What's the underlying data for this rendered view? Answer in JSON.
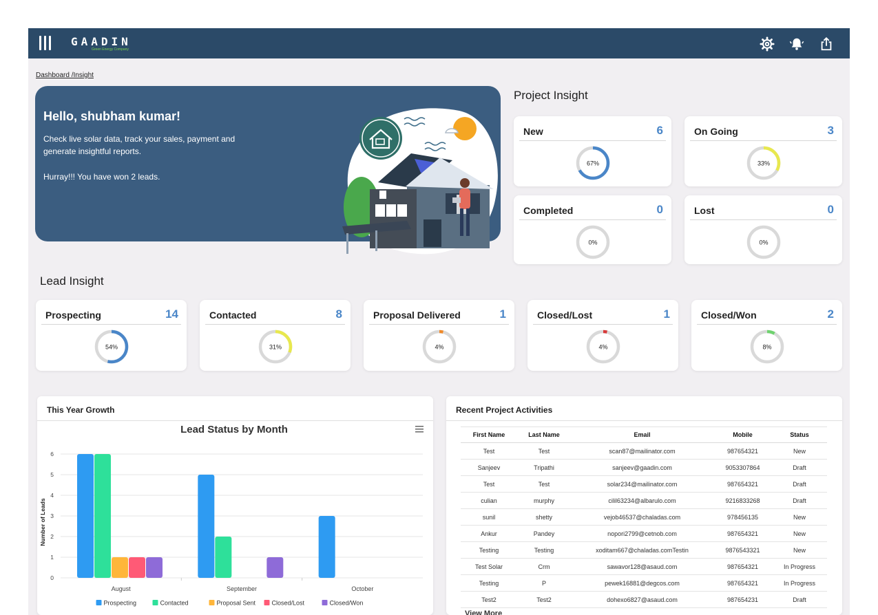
{
  "header": {
    "brand": "GAADIN",
    "tagline": "Green Energy Company",
    "icons": [
      "menu-icon",
      "gear-icon",
      "bell-icon",
      "share-icon"
    ]
  },
  "breadcrumb": {
    "root": "Dashboard /",
    "current": "Insight"
  },
  "hero": {
    "greeting": "Hello, shubham kumar!",
    "message": "Check live solar data, track your sales, payment and generate insightful reports.",
    "won": "Hurray!!! You have won 2 leads."
  },
  "project_insight": {
    "title": "Project Insight",
    "cards": [
      {
        "label": "New",
        "count": "6",
        "percent_label": "67%",
        "fraction": 0.67,
        "color": "#4a86c8"
      },
      {
        "label": "On Going",
        "count": "3",
        "percent_label": "33%",
        "fraction": 0.33,
        "color": "#e8e84e"
      },
      {
        "label": "Completed",
        "count": "0",
        "percent_label": "0%",
        "fraction": 0,
        "color": "#4a86c8"
      },
      {
        "label": "Lost",
        "count": "0",
        "percent_label": "0%",
        "fraction": 0,
        "color": "#4a86c8"
      }
    ]
  },
  "lead_insight": {
    "title": "Lead Insight",
    "cards": [
      {
        "label": "Prospecting",
        "count": "14",
        "percent_label": "54%",
        "fraction": 0.54,
        "color": "#4a86c8"
      },
      {
        "label": "Contacted",
        "count": "8",
        "percent_label": "31%",
        "fraction": 0.31,
        "color": "#e8e84e"
      },
      {
        "label": "Proposal Delivered",
        "count": "1",
        "percent_label": "4%",
        "fraction": 0.04,
        "color": "#ef8a2a"
      },
      {
        "label": "Closed/Lost",
        "count": "1",
        "percent_label": "4%",
        "fraction": 0.04,
        "color": "#d73a3a"
      },
      {
        "label": "Closed/Won",
        "count": "2",
        "percent_label": "8%",
        "fraction": 0.08,
        "color": "#6fd26f"
      }
    ]
  },
  "growth": {
    "panel_title": "This Year Growth",
    "chart_menu_icon": "hamburger-icon"
  },
  "chart_data": {
    "type": "bar",
    "title": "Lead Status by Month",
    "xlabel": "",
    "ylabel": "Number of Leads",
    "categories": [
      "August",
      "September",
      "October"
    ],
    "ylim": [
      0,
      6
    ],
    "yticks": [
      "0",
      "1",
      "2",
      "3",
      "4",
      "5",
      "6"
    ],
    "grid": true,
    "legend_position": "bottom",
    "series": [
      {
        "name": "Prospecting",
        "color": "#2e9bf2",
        "values": [
          6,
          5,
          3
        ]
      },
      {
        "name": "Contacted",
        "color": "#2ee09a",
        "values": [
          6,
          2,
          0
        ]
      },
      {
        "name": "Proposal Sent",
        "color": "#ffb63a",
        "values": [
          1,
          0,
          0
        ]
      },
      {
        "name": "Closed/Lost",
        "color": "#ff5a76",
        "values": [
          1,
          0,
          0
        ]
      },
      {
        "name": "Closed/Won",
        "color": "#8e6bd8",
        "values": [
          1,
          1,
          0
        ]
      }
    ]
  },
  "activities": {
    "panel_title": "Recent Project Activities",
    "columns": [
      "First Name",
      "Last Name",
      "Email",
      "Mobile",
      "Status"
    ],
    "rows": [
      [
        "Test",
        "Test",
        "scan87@mailinator.com",
        "987654321",
        "New"
      ],
      [
        "Sanjeev",
        "Tripathi",
        "sanjeev@gaadin.com",
        "9053307864",
        "Draft"
      ],
      [
        "Test",
        "Test",
        "solar234@mailinator.com",
        "987654321",
        "Draft"
      ],
      [
        "culian",
        "murphy",
        "cilil63234@albarulo.com",
        "9216833268",
        "Draft"
      ],
      [
        "sunil",
        "shetty",
        "vejob46537@chaladas.com",
        "978456135",
        "New"
      ],
      [
        "Ankur",
        "Pandey",
        "nopori2799@cetnob.com",
        "987654321",
        "New"
      ],
      [
        "Testing",
        "Testing",
        "xoditam667@chaladas.comTestin",
        "9876543321",
        "New"
      ],
      [
        "Test Solar",
        "Crm",
        "sawavor128@asaud.com",
        "987654321",
        "In Progress"
      ],
      [
        "Testing",
        "P",
        "pewek16881@degcos.com",
        "987654321",
        "In Progress"
      ],
      [
        "Test2",
        "Test2",
        "dohexo6827@asaud.com",
        "987654231",
        "Draft"
      ]
    ],
    "view_more": "View More"
  }
}
